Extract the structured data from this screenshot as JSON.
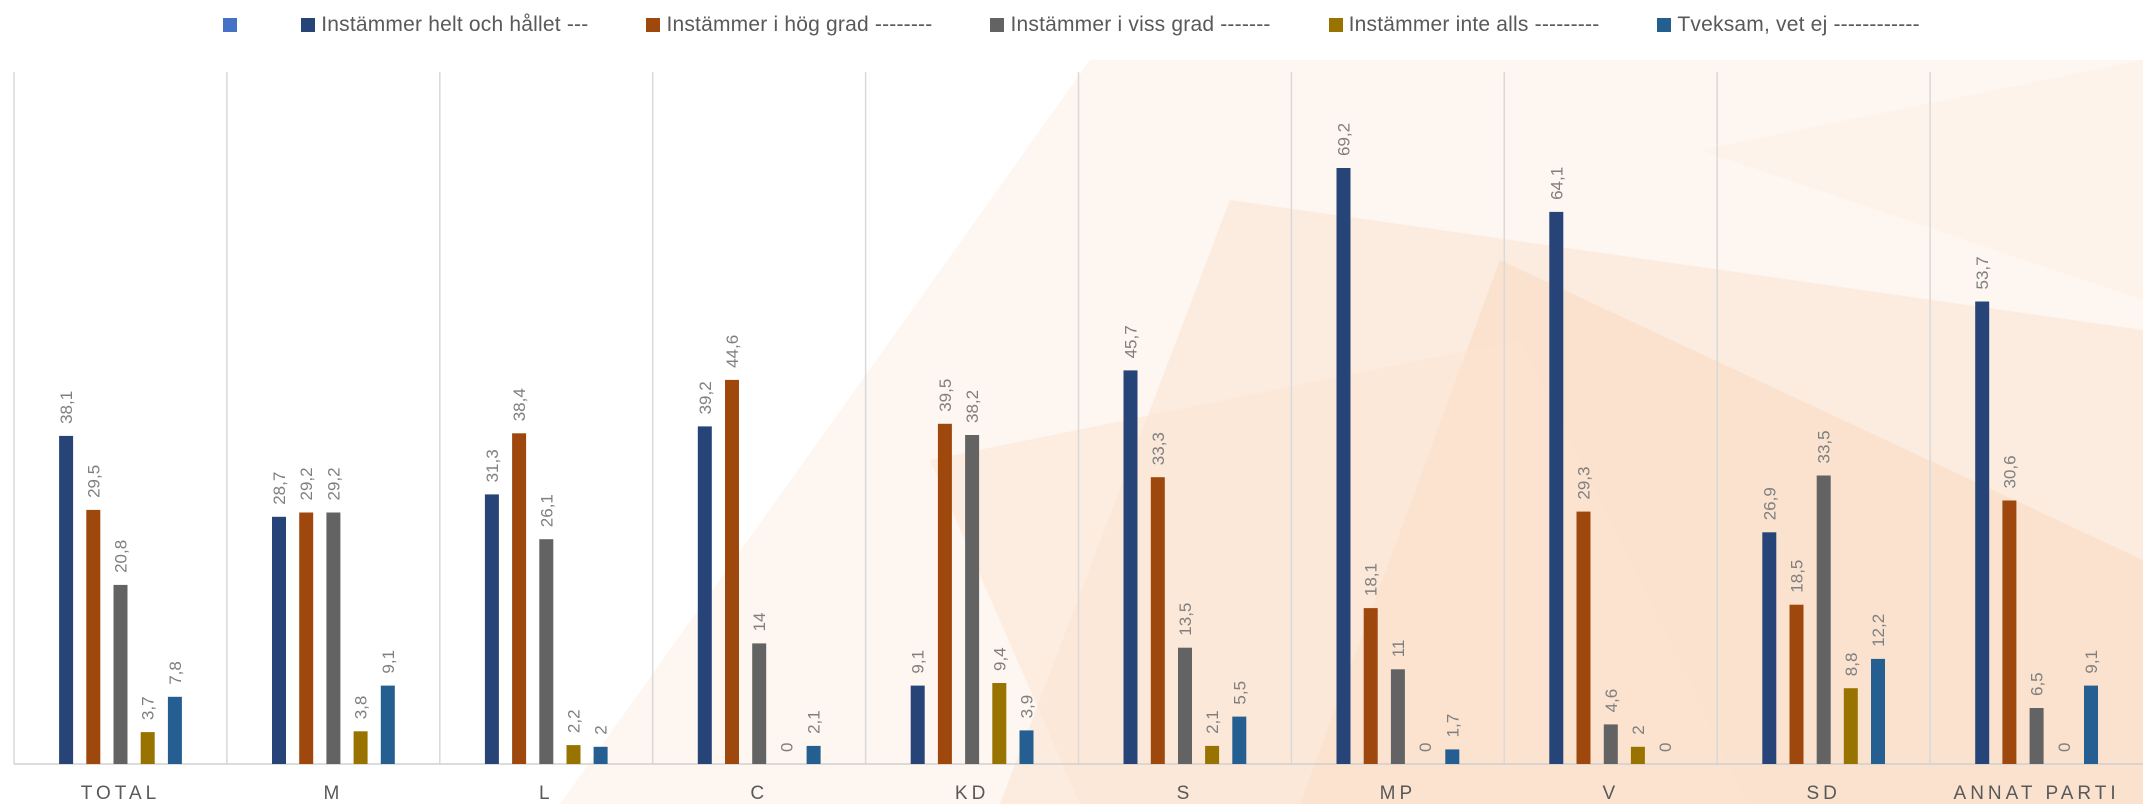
{
  "chart_data": {
    "type": "bar",
    "categories": [
      "TOTAL",
      "M",
      "L",
      "C",
      "KD",
      "S",
      "MP",
      "V",
      "SD",
      "ANNAT PARTI"
    ],
    "series": [
      {
        "name": "Instämmer helt och hållet ---",
        "color": "#264478",
        "values": [
          38.1,
          28.7,
          31.3,
          39.2,
          9.1,
          45.7,
          69.2,
          64.1,
          26.9,
          53.7
        ]
      },
      {
        "name": "Instämmer i hög grad --------",
        "color": "#9E480E",
        "values": [
          29.5,
          29.2,
          38.4,
          44.6,
          39.5,
          33.3,
          18.1,
          29.3,
          18.5,
          30.6
        ]
      },
      {
        "name": "Instämmer i viss grad -------",
        "color": "#636363",
        "values": [
          20.8,
          29.2,
          26.1,
          14,
          38.2,
          13.5,
          11,
          4.6,
          33.5,
          6.5
        ]
      },
      {
        "name": "Instämmer inte alls ---------",
        "color": "#997300",
        "values": [
          3.7,
          3.8,
          2.2,
          0,
          9.4,
          2.1,
          0,
          2,
          8.8,
          0
        ]
      },
      {
        "name": "Tveksam, vet ej ------------",
        "color": "#255E91",
        "values": [
          7.8,
          9.1,
          2,
          2.1,
          3.9,
          5.5,
          1.7,
          0,
          12.2,
          9.1
        ]
      }
    ],
    "value_labels": [
      [
        "38,1",
        "28,7",
        "31,3",
        "39,2",
        "9,1",
        "45,7",
        "69,2",
        "64,1",
        "26,9",
        "53,7"
      ],
      [
        "29,5",
        "29,2",
        "38,4",
        "44,6",
        "39,5",
        "33,3",
        "18,1",
        "29,3",
        "18,5",
        "30,6"
      ],
      [
        "20,8",
        "29,2",
        "26,1",
        "14",
        "38,2",
        "13,5",
        "11",
        "4,6",
        "33,5",
        "6,5"
      ],
      [
        "3,7",
        "3,8",
        "2,2",
        "0",
        "9,4",
        "2,1",
        "0",
        "2",
        "8,8",
        "0"
      ],
      [
        "7,8",
        "9,1",
        "2",
        "2,1",
        "3,9",
        "5,5",
        "1,7",
        "0",
        "12,2",
        "9,1"
      ]
    ],
    "legend_extra_swatch_color": "#4472C4",
    "ylim": [
      0,
      70
    ],
    "gridlines": "vertical category separators",
    "legend_position": "top"
  }
}
